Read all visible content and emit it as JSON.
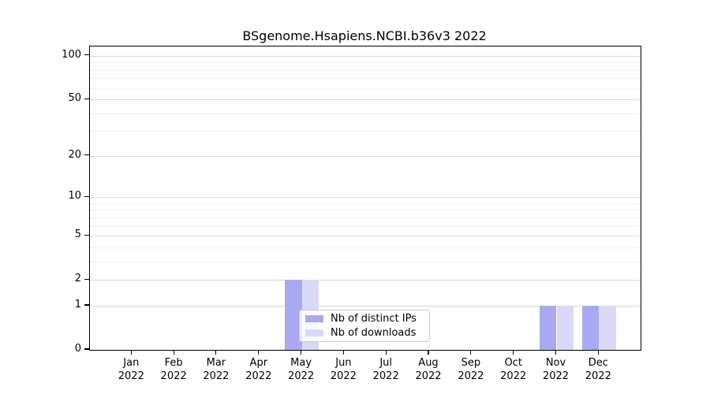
{
  "figure": {
    "title": "BSgenome.Hsapiens.NCBI.b36v3 2022"
  },
  "chart_data": {
    "type": "bar",
    "title": "BSgenome.Hsapiens.NCBI.b36v3 2022",
    "categories": [
      "Jan",
      "Feb",
      "Mar",
      "Apr",
      "May",
      "Jun",
      "Jul",
      "Aug",
      "Sep",
      "Oct",
      "Nov",
      "Dec"
    ],
    "category_year": "2022",
    "series": [
      {
        "name": "Nb of distinct IPs",
        "color": "#a9a9f3",
        "values": [
          0,
          0,
          0,
          0,
          2,
          0,
          0,
          0,
          0,
          0,
          1,
          1
        ]
      },
      {
        "name": "Nb of downloads",
        "color": "#d9d9f7",
        "values": [
          0,
          0,
          0,
          0,
          2,
          0,
          0,
          0,
          0,
          0,
          1,
          1
        ]
      }
    ],
    "xlabel": "",
    "ylabel": "",
    "yscale": "log1p",
    "ylim": [
      0,
      116
    ],
    "yticks": [
      0,
      1,
      2,
      5,
      10,
      20,
      50,
      100
    ],
    "minor_gridlines": [
      3,
      4,
      6,
      7,
      8,
      9,
      30,
      40,
      60,
      70,
      80,
      90
    ],
    "grid": true,
    "legend_position": "inside lower-center-left"
  },
  "legend": {
    "items": [
      "Nb of distinct IPs",
      "Nb of downloads"
    ]
  }
}
